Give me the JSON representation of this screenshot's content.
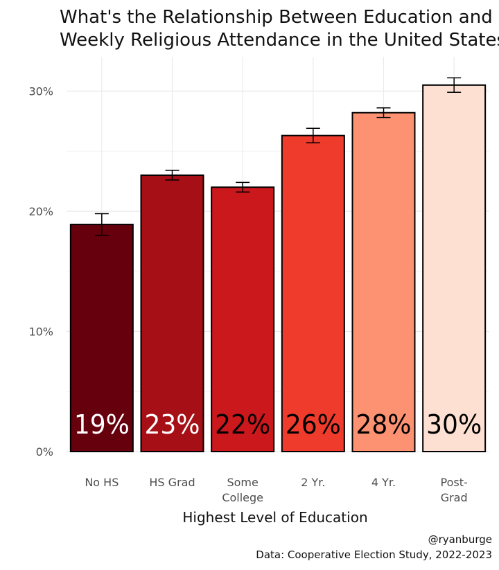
{
  "title_lines": [
    "What's the Relationship Between Education and",
    "Weekly Religious Attendance in the United States?"
  ],
  "caption_lines": [
    "@ryanburge",
    "Data: Cooperative Election Study, 2022-2023"
  ],
  "chart_data": {
    "type": "bar",
    "title": "What's the Relationship Between Education and Weekly Religious Attendance in the United States?",
    "xlabel": "Highest Level of Education",
    "ylabel": "",
    "categories": [
      [
        "No HS"
      ],
      [
        "HS Grad"
      ],
      [
        "Some",
        "College"
      ],
      [
        "2 Yr."
      ],
      [
        "4 Yr."
      ],
      [
        "Post-",
        "Grad"
      ]
    ],
    "values": [
      18.9,
      23.0,
      22.0,
      26.3,
      28.2,
      30.5
    ],
    "error_low": [
      18.0,
      22.6,
      21.6,
      25.7,
      27.8,
      29.9
    ],
    "error_high": [
      19.8,
      23.4,
      22.4,
      26.9,
      28.6,
      31.1
    ],
    "data_labels": [
      "19%",
      "23%",
      "22%",
      "26%",
      "28%",
      "30%"
    ],
    "bar_colors": [
      "#67000d",
      "#a50f15",
      "#cb181d",
      "#ef3b2c",
      "#fc9272",
      "#fee0d2"
    ],
    "label_colors": [
      "#ffffff",
      "#ffffff",
      "#000000",
      "#000000",
      "#000000",
      "#000000"
    ],
    "y_ticks": [
      0,
      10,
      20,
      30
    ],
    "y_tick_labels": [
      "0%",
      "10%",
      "20%",
      "30%"
    ],
    "ylim": [
      0,
      32
    ],
    "grid": true,
    "legend": "none"
  }
}
